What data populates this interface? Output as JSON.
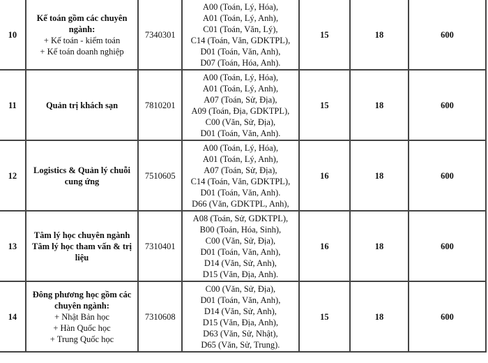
{
  "rows": [
    {
      "stt": "10",
      "name_lines": [
        "Kế toán gồm các chuyên",
        "ngành:"
      ],
      "sub_lines": [
        "+ Kế toán - kiểm toán",
        "+ Kế toán doanh nghiệp"
      ],
      "code": "7340301",
      "combos": [
        "A00 (Toán, Lý, Hóa),",
        "A01 (Toán, Lý, Anh),",
        "C01 (Toán, Văn, Lý),",
        "C14 (Toán, Văn, GDKTPL),",
        "D01 (Toán, Văn, Anh),",
        "D07 (Toán, Hóa, Anh)."
      ],
      "score1": "15",
      "score2": "18",
      "score3": "600"
    },
    {
      "stt": "11",
      "name_lines": [
        "Quản trị khách sạn"
      ],
      "sub_lines": [],
      "code": "7810201",
      "combos": [
        "A00 (Toán, Lý, Hóa),",
        "A01 (Toán, Lý, Anh),",
        "A07 (Toán, Sử, Địa),",
        "A09 (Toán, Địa, GDKTPL),",
        "C00 (Văn, Sử, Địa),",
        "D01 (Toán, Văn, Anh)."
      ],
      "score1": "15",
      "score2": "18",
      "score3": "600"
    },
    {
      "stt": "12",
      "name_lines": [
        "Logistics & Quản lý chuỗi",
        "cung ứng"
      ],
      "sub_lines": [],
      "code": "7510605",
      "combos": [
        "A00 (Toán, Lý, Hóa),",
        "A01 (Toán, Lý, Anh),",
        "A07 (Toán, Sử, Địa),",
        "C14 (Toán, Văn, GDKTPL),",
        "D01 (Toán, Văn, Anh).",
        "D66 (Văn, GDKTPL, Anh),"
      ],
      "score1": "16",
      "score2": "18",
      "score3": "600"
    },
    {
      "stt": "13",
      "name_lines": [
        "Tâm lý học chuyên ngành",
        "Tâm lý học tham vấn & trị",
        "liệu"
      ],
      "sub_lines": [],
      "code": "7310401",
      "combos": [
        "A08 (Toán, Sử, GDKTPL),",
        "B00 (Toán, Hóa, Sinh),",
        "C00 (Văn, Sử, Địa),",
        "D01 (Toán, Văn, Anh),",
        "D14 (Văn, Sử, Anh),",
        "D15 (Văn, Địa, Anh)."
      ],
      "score1": "16",
      "score2": "18",
      "score3": "600"
    },
    {
      "stt": "14",
      "name_lines": [
        "Đông phương học gồm các",
        "chuyên ngành:"
      ],
      "sub_lines": [
        "+ Nhật Bản học",
        "+ Hàn Quốc học",
        "+ Trung Quốc học"
      ],
      "code": "7310608",
      "combos": [
        "C00 (Văn, Sử, Địa),",
        "D01 (Toán, Văn, Anh),",
        "D14 (Văn, Sử, Anh),",
        "D15 (Văn, Địa, Anh),",
        "D63 (Văn, Sử, Nhật),",
        "D65 (Văn, Sử, Trung)."
      ],
      "score1": "15",
      "score2": "18",
      "score3": "600"
    }
  ]
}
